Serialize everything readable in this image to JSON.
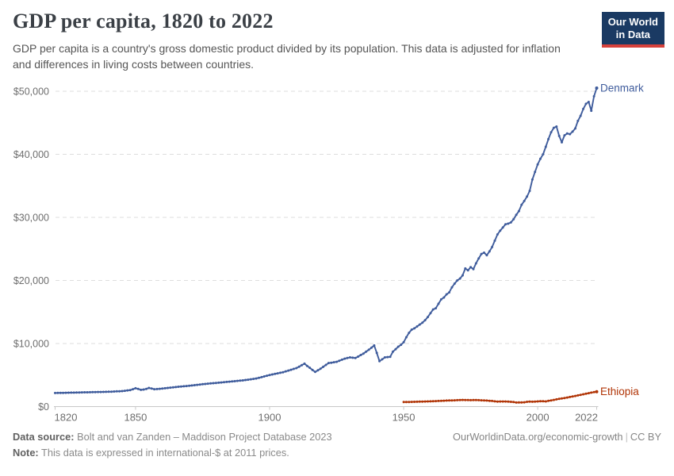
{
  "header": {
    "title": "GDP per capita, 1820 to 2022",
    "subtitle_line1": "GDP per capita is a country's gross domestic product divided by its population. This data is adjusted for inflation",
    "subtitle_line2": "and differences in living costs between countries.",
    "logo": {
      "line1": "Our World",
      "line2": "in Data"
    }
  },
  "chart_data": {
    "type": "line",
    "title": "GDP per capita, 1820 to 2022",
    "xlabel": "",
    "ylabel": "",
    "x_domain": [
      1820,
      2022
    ],
    "grid": "horizontal-dashed",
    "legend_position": "end-of-line-labels",
    "colors": {
      "grid": "#dedede",
      "axis": "#c8c8c8",
      "tick_text": "#6e6e6e"
    },
    "y_axis": {
      "max": 50000,
      "ticks": [
        {
          "value": 0,
          "label": "$0"
        },
        {
          "value": 10000,
          "label": "$10,000"
        },
        {
          "value": 20000,
          "label": "$20,000"
        },
        {
          "value": 30000,
          "label": "$30,000"
        },
        {
          "value": 40000,
          "label": "$40,000"
        },
        {
          "value": 50000,
          "label": "$50,000"
        }
      ]
    },
    "x_axis": {
      "ticks": [
        {
          "value": 1820,
          "label": "1820",
          "align": "start"
        },
        {
          "value": 1850,
          "label": "1850",
          "align": "middle"
        },
        {
          "value": 1900,
          "label": "1900",
          "align": "middle"
        },
        {
          "value": 1950,
          "label": "1950",
          "align": "middle"
        },
        {
          "value": 2000,
          "label": "2000",
          "align": "middle"
        },
        {
          "value": 2022,
          "label": "2022",
          "align": "end"
        }
      ]
    },
    "series": [
      {
        "name": "Denmark",
        "color": "#3f5c9c",
        "start_year": 1820,
        "values": [
          2150,
          2160,
          2170,
          2180,
          2190,
          2200,
          2210,
          2220,
          2230,
          2240,
          2250,
          2260,
          2270,
          2280,
          2290,
          2300,
          2310,
          2320,
          2330,
          2340,
          2350,
          2370,
          2390,
          2410,
          2430,
          2450,
          2500,
          2560,
          2620,
          2750,
          2900,
          2800,
          2650,
          2700,
          2800,
          2950,
          2850,
          2750,
          2780,
          2820,
          2850,
          2900,
          2950,
          3000,
          3050,
          3100,
          3140,
          3180,
          3220,
          3260,
          3300,
          3350,
          3400,
          3450,
          3500,
          3550,
          3590,
          3630,
          3670,
          3710,
          3750,
          3790,
          3830,
          3870,
          3910,
          3950,
          3990,
          4030,
          4070,
          4110,
          4150,
          4210,
          4270,
          4330,
          4390,
          4450,
          4560,
          4670,
          4780,
          4890,
          5000,
          5090,
          5180,
          5270,
          5360,
          5450,
          5580,
          5710,
          5840,
          5970,
          6100,
          6330,
          6570,
          6800,
          6450,
          6150,
          5800,
          5500,
          5750,
          6000,
          6300,
          6600,
          6900,
          6960,
          7030,
          7100,
          7270,
          7430,
          7600,
          7700,
          7800,
          7750,
          7700,
          7930,
          8170,
          8400,
          8700,
          9000,
          9350,
          9700,
          8500,
          7200,
          7500,
          7800,
          7850,
          7900,
          8700,
          9100,
          9500,
          9800,
          10200,
          11000,
          11700,
          12200,
          12400,
          12700,
          13000,
          13300,
          13700,
          14200,
          14800,
          15400,
          15600,
          16300,
          17000,
          17300,
          17800,
          18100,
          18900,
          19500,
          20000,
          20300,
          20800,
          21900,
          21600,
          22100,
          21800,
          22700,
          23500,
          24200,
          24400,
          24000,
          24600,
          25300,
          26300,
          27300,
          27900,
          28400,
          28900,
          29000,
          29200,
          29700,
          30400,
          31000,
          32000,
          32600,
          33300,
          34200,
          36000,
          37200,
          38400,
          39300,
          40000,
          41200,
          42400,
          43500,
          44200,
          44400,
          42900,
          41900,
          43000,
          43300,
          43200,
          43600,
          44100,
          45300,
          46100,
          47200,
          48000,
          48300,
          46900,
          49200,
          50500
        ]
      },
      {
        "name": "Ethiopia",
        "color": "#b13507",
        "start_year": 1950,
        "values": [
          715,
          725,
          735,
          745,
          755,
          765,
          780,
          790,
          805,
          820,
          835,
          850,
          870,
          890,
          910,
          930,
          950,
          965,
          980,
          1000,
          1020,
          1040,
          1060,
          1050,
          1030,
          1020,
          1030,
          1040,
          1020,
          1000,
          980,
          950,
          920,
          890,
          830,
          790,
          800,
          810,
          800,
          780,
          760,
          720,
          640,
          650,
          660,
          680,
          760,
          790,
          770,
          790,
          820,
          850,
          840,
          820,
          900,
          980,
          1060,
          1140,
          1220,
          1290,
          1360,
          1440,
          1520,
          1600,
          1680,
          1770,
          1860,
          1950,
          2040,
          2130,
          2210,
          2290,
          2364
        ]
      }
    ]
  },
  "footer": {
    "source_label": "Data source:",
    "source_text": "Bolt and van Zanden – Maddison Project Database 2023",
    "note_label": "Note:",
    "note_text": "This data is expressed in international-$ at 2011 prices.",
    "url": "OurWorldinData.org/economic-growth",
    "divider": "|",
    "license": "CC BY"
  }
}
